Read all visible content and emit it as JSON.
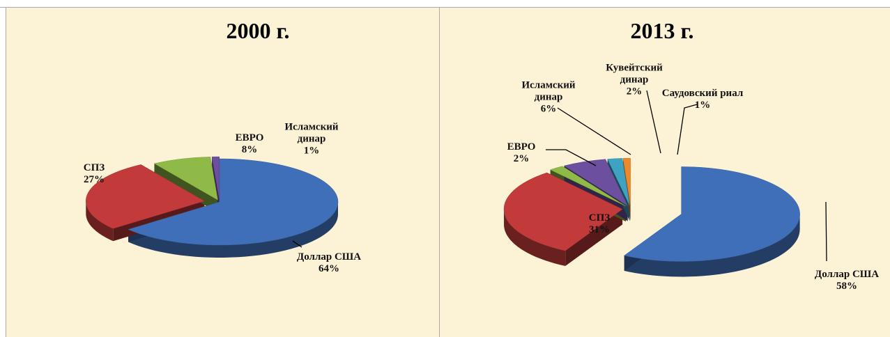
{
  "chart_data": [
    {
      "type": "pie",
      "title": "2000 г.",
      "categories": [
        "Доллар США",
        "СПЗ",
        "ЕВРО",
        "Исламский динар"
      ],
      "values": [
        64,
        27,
        8,
        1
      ],
      "value_labels": [
        "64%",
        "27%",
        "8%",
        "1%"
      ],
      "colors": [
        "#3f6fb8",
        "#c23a3a",
        "#8fba47",
        "#6c4f9e"
      ]
    },
    {
      "type": "pie",
      "title": "2013 г.",
      "categories": [
        "Доллар США",
        "СПЗ",
        "ЕВРО",
        "Исламский динар",
        "Кувейтский динар",
        "Саудовский риал"
      ],
      "values": [
        58,
        31,
        2,
        6,
        2,
        1
      ],
      "value_labels": [
        "58%",
        "31%",
        "2%",
        "6%",
        "2%",
        "1%"
      ],
      "colors": [
        "#3f6fb8",
        "#c23a3a",
        "#8fba47",
        "#6c4f9e",
        "#3ea3c3",
        "#ea8a2c"
      ]
    }
  ]
}
